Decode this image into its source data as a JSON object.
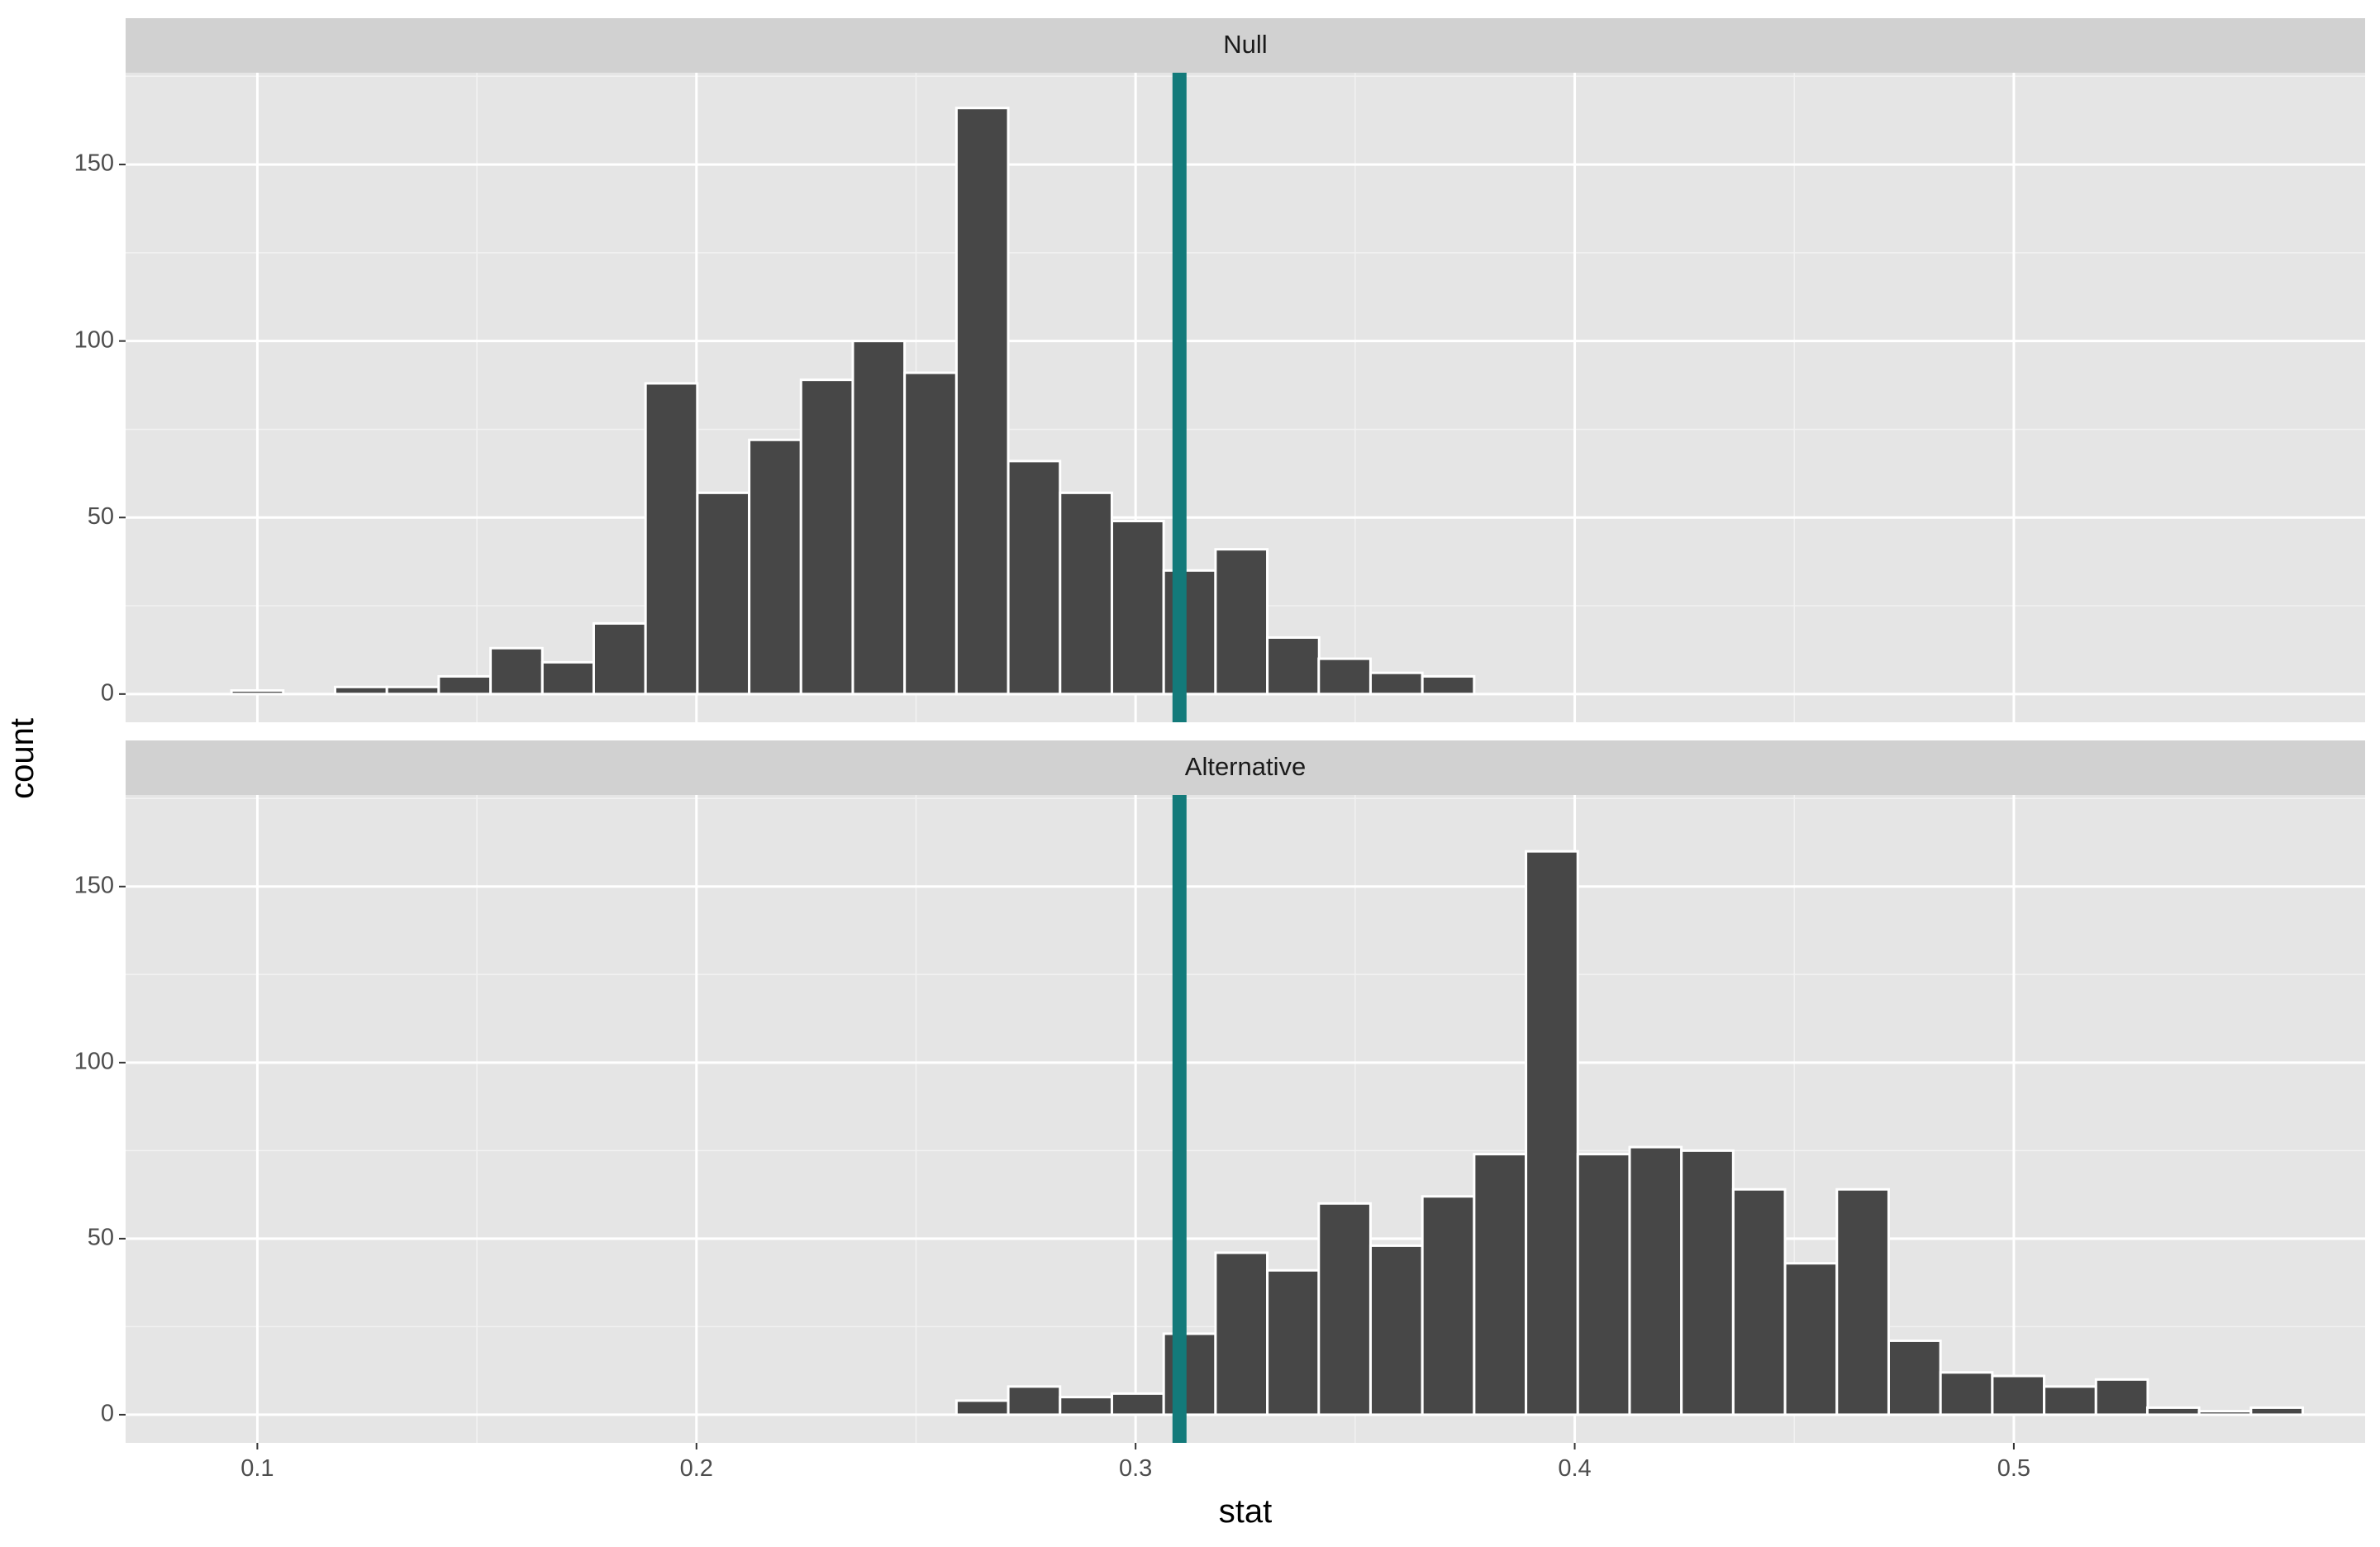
{
  "chart_data": {
    "type": "bar",
    "subtype": "faceted-histogram",
    "xlabel": "stat",
    "ylabel": "count",
    "xlim": [
      0.07,
      0.58
    ],
    "ylim": [
      -8,
      176
    ],
    "x_ticks": [
      0.1,
      0.2,
      0.3,
      0.4,
      0.5
    ],
    "x_tick_labels": [
      "0.1",
      "0.2",
      "0.3",
      "0.4",
      "0.5"
    ],
    "y_ticks": [
      0,
      50,
      100,
      150
    ],
    "y_tick_labels": [
      "0",
      "50",
      "100",
      "150"
    ],
    "grid": true,
    "bin_width": 0.01179,
    "bar_color": "#474747",
    "bar_outline": "#ffffff",
    "panel_background": "#e5e5e5",
    "strip_background": "#d1d1d1",
    "reference_line": {
      "x": 0.31,
      "color": "#137a7a"
    },
    "facets": [
      {
        "label": "Null",
        "bins": [
          {
            "x": 0.1,
            "count": 1
          },
          {
            "x": 0.1118,
            "count": 0
          },
          {
            "x": 0.1236,
            "count": 2
          },
          {
            "x": 0.1354,
            "count": 2
          },
          {
            "x": 0.1472,
            "count": 5
          },
          {
            "x": 0.159,
            "count": 13
          },
          {
            "x": 0.1708,
            "count": 9
          },
          {
            "x": 0.1825,
            "count": 20
          },
          {
            "x": 0.1943,
            "count": 88
          },
          {
            "x": 0.2061,
            "count": 57
          },
          {
            "x": 0.2179,
            "count": 72
          },
          {
            "x": 0.2297,
            "count": 89
          },
          {
            "x": 0.2415,
            "count": 100
          },
          {
            "x": 0.2533,
            "count": 91
          },
          {
            "x": 0.2651,
            "count": 166
          },
          {
            "x": 0.2769,
            "count": 66
          },
          {
            "x": 0.2887,
            "count": 57
          },
          {
            "x": 0.3005,
            "count": 49
          },
          {
            "x": 0.3123,
            "count": 35
          },
          {
            "x": 0.3241,
            "count": 41
          },
          {
            "x": 0.3359,
            "count": 16
          },
          {
            "x": 0.3476,
            "count": 10
          },
          {
            "x": 0.3594,
            "count": 6
          },
          {
            "x": 0.3712,
            "count": 5
          }
        ]
      },
      {
        "label": "Alternative",
        "bins": [
          {
            "x": 0.2651,
            "count": 4
          },
          {
            "x": 0.2769,
            "count": 8
          },
          {
            "x": 0.2887,
            "count": 5
          },
          {
            "x": 0.3005,
            "count": 6
          },
          {
            "x": 0.3123,
            "count": 23
          },
          {
            "x": 0.3241,
            "count": 46
          },
          {
            "x": 0.3359,
            "count": 41
          },
          {
            "x": 0.3476,
            "count": 60
          },
          {
            "x": 0.3594,
            "count": 48
          },
          {
            "x": 0.3712,
            "count": 62
          },
          {
            "x": 0.383,
            "count": 74
          },
          {
            "x": 0.3948,
            "count": 160
          },
          {
            "x": 0.4066,
            "count": 74
          },
          {
            "x": 0.4184,
            "count": 76
          },
          {
            "x": 0.4302,
            "count": 75
          },
          {
            "x": 0.442,
            "count": 64
          },
          {
            "x": 0.4538,
            "count": 43
          },
          {
            "x": 0.4656,
            "count": 64
          },
          {
            "x": 0.4774,
            "count": 21
          },
          {
            "x": 0.4892,
            "count": 12
          },
          {
            "x": 0.501,
            "count": 11
          },
          {
            "x": 0.5128,
            "count": 8
          },
          {
            "x": 0.5246,
            "count": 10
          },
          {
            "x": 0.5363,
            "count": 2
          },
          {
            "x": 0.5481,
            "count": 1
          },
          {
            "x": 0.5599,
            "count": 2
          }
        ]
      }
    ]
  }
}
